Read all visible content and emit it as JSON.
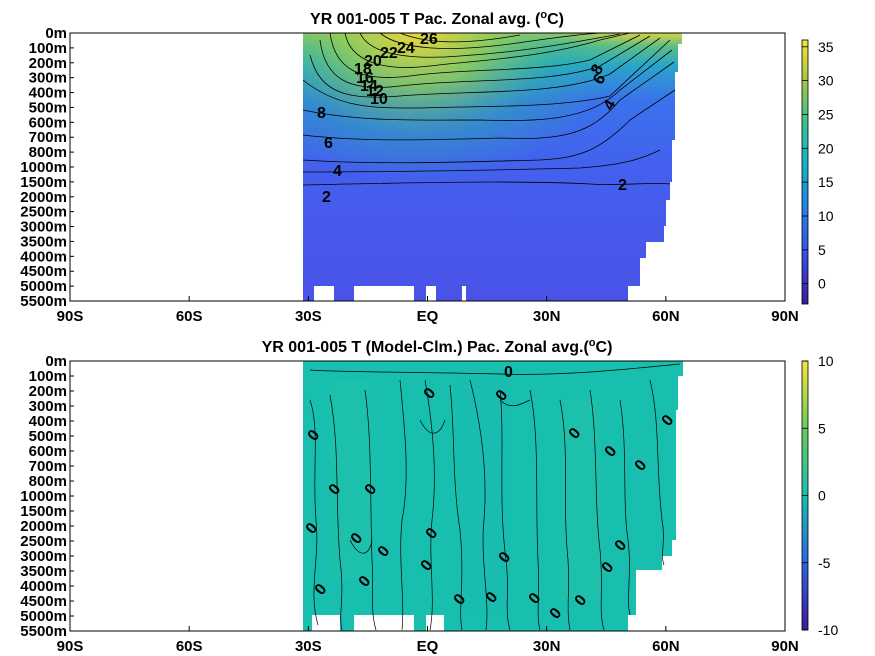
{
  "chart_data": [
    {
      "type": "heatmap",
      "title": "YR 001-005 T Pac. Zonal avg. (",
      "title_sup": "o",
      "title_end": "C)",
      "x_ticks": [
        "90S",
        "60S",
        "30S",
        "EQ",
        "30N",
        "60N",
        "90N"
      ],
      "x_values": [
        -90,
        -60,
        -30,
        0,
        30,
        60,
        90
      ],
      "y_ticks": [
        "0m",
        "100m",
        "200m",
        "300m",
        "400m",
        "500m",
        "600m",
        "700m",
        "800m",
        "1000m",
        "1500m",
        "2000m",
        "2500m",
        "3000m",
        "3500m",
        "4000m",
        "4500m",
        "5000m",
        "5500m"
      ],
      "colorbar": {
        "ticks": [
          "35",
          "30",
          "25",
          "20",
          "15",
          "10",
          "5",
          "0"
        ],
        "values": [
          35,
          30,
          25,
          20,
          15,
          10,
          5,
          0
        ],
        "min": -3,
        "max": 36
      },
      "contour_labels": [
        "26",
        "24",
        "22",
        "20",
        "18",
        "16",
        "14",
        "12",
        "10",
        "8",
        "6",
        "4",
        "2",
        "8",
        "6",
        "4",
        "2"
      ],
      "data_extent_lat": [
        -35,
        62
      ]
    },
    {
      "type": "heatmap",
      "title": "YR 001-005 T (Model-Clm.) Pac. Zonal avg.(",
      "title_sup": "o",
      "title_end": "C)",
      "x_ticks": [
        "90S",
        "60S",
        "30S",
        "EQ",
        "30N",
        "60N",
        "90N"
      ],
      "x_values": [
        -90,
        -60,
        -30,
        0,
        30,
        60,
        90
      ],
      "y_ticks": [
        "0m",
        "100m",
        "200m",
        "300m",
        "400m",
        "500m",
        "600m",
        "700m",
        "800m",
        "1000m",
        "1500m",
        "2000m",
        "2500m",
        "3000m",
        "3500m",
        "4000m",
        "4500m",
        "5000m",
        "5500m"
      ],
      "colorbar": {
        "ticks": [
          "10",
          "5",
          "0",
          "-5",
          "-10"
        ],
        "values": [
          10,
          5,
          0,
          -5,
          -10
        ],
        "min": -10,
        "max": 10
      },
      "contour_labels": [
        "0",
        "0",
        "0",
        "0",
        "0",
        "0",
        "0",
        "0",
        "0",
        "0",
        "0",
        "0",
        "0",
        "0",
        "0",
        "0",
        "0",
        "0",
        "0",
        "0",
        "0",
        "0",
        "0",
        "0",
        "0"
      ],
      "data_extent_lat": [
        -35,
        62
      ]
    }
  ],
  "colors": {
    "surface_yellow": "#f2d54a",
    "warm_green": "#6cc27a",
    "mid_blue": "#3f6cf0",
    "deep_blue": "#4a55e8",
    "anomaly_teal": "#19bfae",
    "missing": "#ffffff"
  }
}
